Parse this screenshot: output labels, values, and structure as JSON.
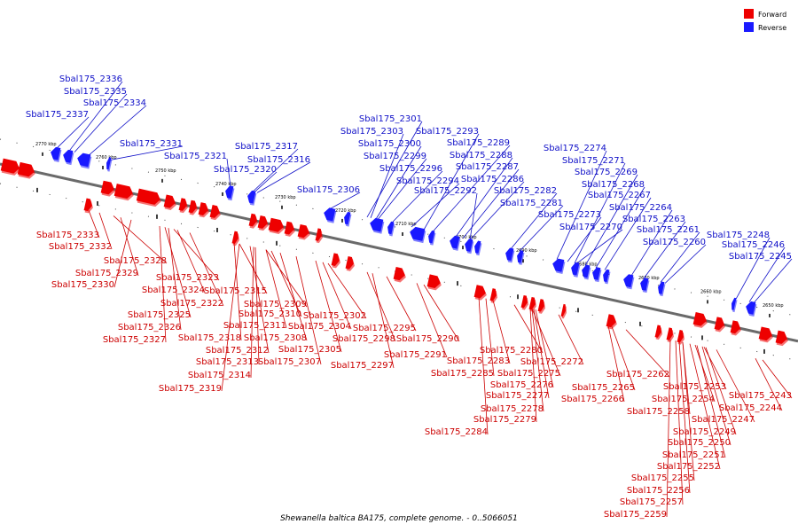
{
  "caption": "Shewanella baltica BA175, complete genome. - 0..5066051",
  "legend": [
    {
      "label": "Forward",
      "color": "#ee0000"
    },
    {
      "label": "Reverse",
      "color": "#1a1aff"
    }
  ],
  "colors": {
    "forward": "#ee0000",
    "reverse": "#1a1aff",
    "forward_label": "#cc0000",
    "reverse_label": "#1010c8",
    "backbone": "#6a6a6a"
  },
  "ticks": [
    "2770 kbp",
    "2760 kbp",
    "2750 kbp",
    "2740 kbp",
    "2730 kbp",
    "2720 kbp",
    "2710 kbp",
    "2700 kbp",
    "2690 kbp",
    "2680 kbp",
    "2670 kbp",
    "2660 kbp",
    "2650 kbp"
  ],
  "reverse_genes": [
    "Sbal175_2336",
    "Sbal175_2335",
    "Sbal175_2334",
    "Sbal175_2337",
    "Sbal175_2331",
    "Sbal175_2321",
    "Sbal175_2317",
    "Sbal175_2316",
    "Sbal175_2320",
    "Sbal175_2306",
    "Sbal175_2301",
    "Sbal175_2303",
    "Sbal175_2300",
    "Sbal175_2299",
    "Sbal175_2296",
    "Sbal175_2294",
    "Sbal175_2293",
    "Sbal175_2289",
    "Sbal175_2288",
    "Sbal175_2287",
    "Sbal175_2286",
    "Sbal175_2292",
    "Sbal175_2282",
    "Sbal175_2281",
    "Sbal175_2274",
    "Sbal175_2271",
    "Sbal175_2269",
    "Sbal175_2268",
    "Sbal175_2267",
    "Sbal175_2273",
    "Sbal175_2270",
    "Sbal175_2264",
    "Sbal175_2263",
    "Sbal175_2261",
    "Sbal175_2260",
    "Sbal175_2248",
    "Sbal175_2246",
    "Sbal175_2245"
  ],
  "forward_genes": [
    "Sbal175_2333",
    "Sbal175_2332",
    "Sbal175_2328",
    "Sbal175_2329",
    "Sbal175_2330",
    "Sbal175_2323",
    "Sbal175_2324",
    "Sbal175_2322",
    "Sbal175_2325",
    "Sbal175_2326",
    "Sbal175_2327",
    "Sbal175_2315",
    "Sbal175_2309",
    "Sbal175_2310",
    "Sbal175_2311",
    "Sbal175_2318",
    "Sbal175_2312",
    "Sbal175_2313",
    "Sbal175_2314",
    "Sbal175_2319",
    "Sbal175_2308",
    "Sbal175_2307",
    "Sbal175_2305",
    "Sbal175_2302",
    "Sbal175_2304",
    "Sbal175_2295",
    "Sbal175_2298",
    "Sbal175_2297",
    "Sbal175_2290",
    "Sbal175_2291",
    "Sbal175_2280",
    "Sbal175_2283",
    "Sbal175_2285",
    "Sbal175_2284",
    "Sbal175_2275",
    "Sbal175_2276",
    "Sbal175_2277",
    "Sbal175_2278",
    "Sbal175_2279",
    "Sbal175_2272",
    "Sbal175_2262",
    "Sbal175_2265",
    "Sbal175_2266",
    "Sbal175_2253",
    "Sbal175_2254",
    "Sbal175_2258",
    "Sbal175_2247",
    "Sbal175_2249",
    "Sbal175_2250",
    "Sbal175_2251",
    "Sbal175_2252",
    "Sbal175_2255",
    "Sbal175_2256",
    "Sbal175_2257",
    "Sbal175_2259",
    "Sbal175_2243",
    "Sbal175_2244"
  ]
}
